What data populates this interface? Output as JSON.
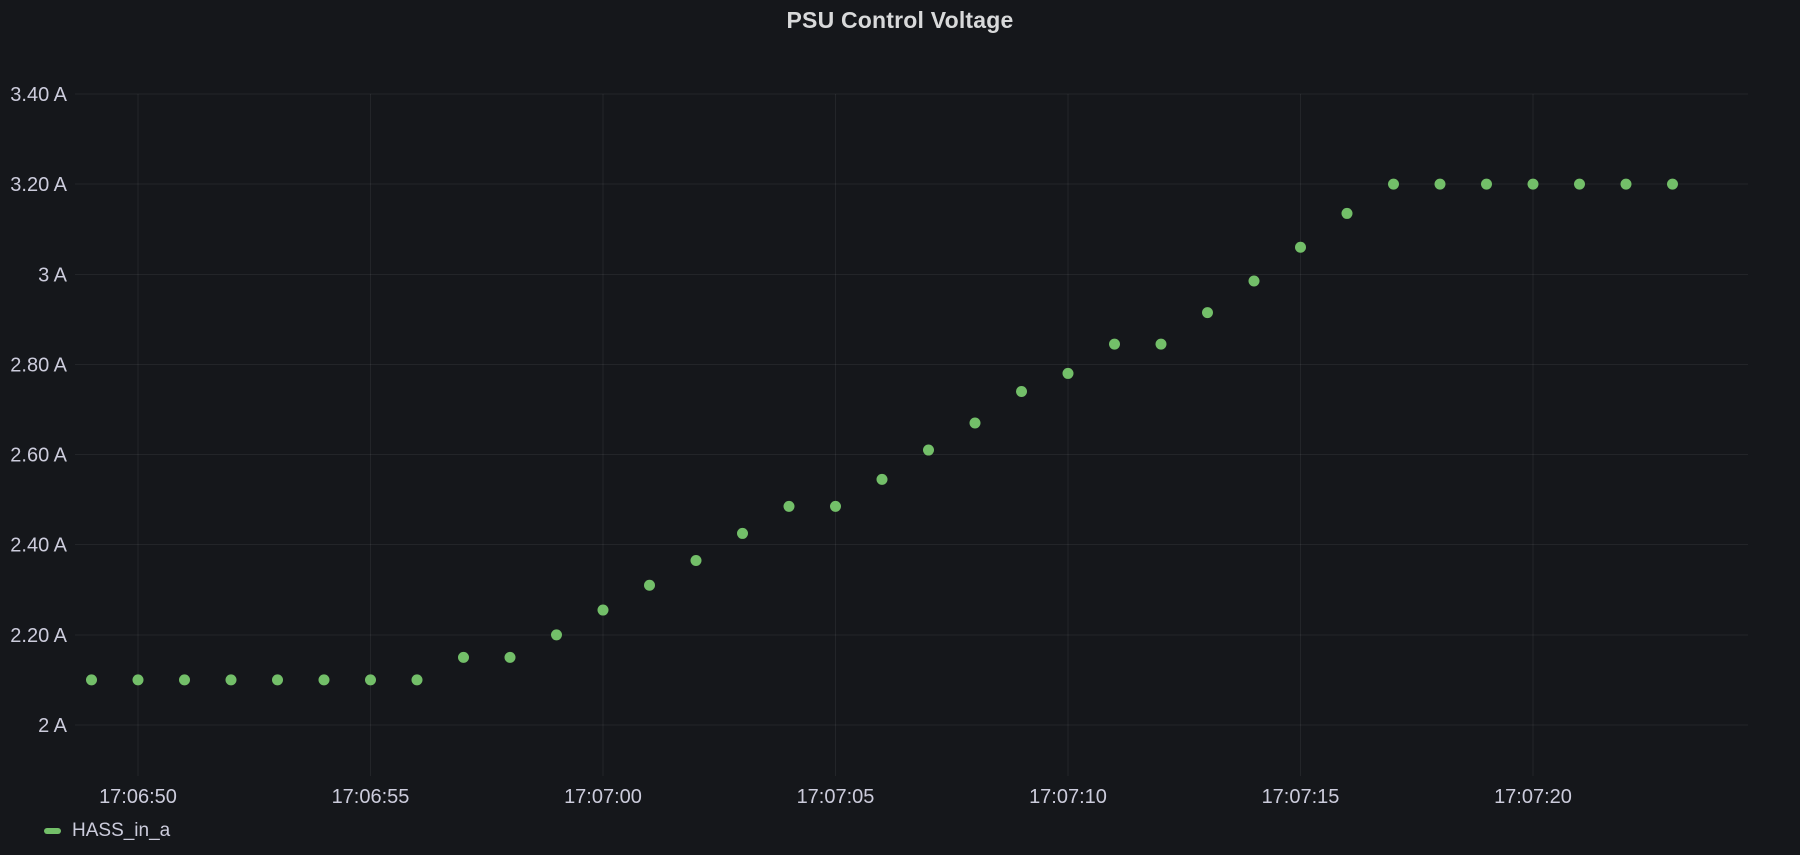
{
  "panel": {
    "title": "PSU Control Voltage"
  },
  "legend": {
    "series_label": "HASS_in_a"
  },
  "colors": {
    "background": "#15171B",
    "grid_line": "rgba(204,204,220,0.08)",
    "tick_text": "#CCCCDC",
    "title_text": "#D8D9DA",
    "point": "#73BF69"
  },
  "chart_data": {
    "type": "scatter",
    "title": "PSU Control Voltage",
    "series": [
      {
        "name": "HASS_in_a",
        "color": "#73BF69",
        "times": [
          "17:06:49",
          "17:06:50",
          "17:06:51",
          "17:06:52",
          "17:06:53",
          "17:06:54",
          "17:06:55",
          "17:06:56",
          "17:06:57",
          "17:06:58",
          "17:06:59",
          "17:07:00",
          "17:07:01",
          "17:07:02",
          "17:07:03",
          "17:07:04",
          "17:07:05",
          "17:07:06",
          "17:07:07",
          "17:07:08",
          "17:07:09",
          "17:07:10",
          "17:07:11",
          "17:07:12",
          "17:07:13",
          "17:07:14",
          "17:07:15",
          "17:07:16",
          "17:07:17",
          "17:07:18",
          "17:07:19",
          "17:07:20",
          "17:07:21",
          "17:07:22",
          "17:07:23"
        ],
        "values": [
          2.1,
          2.1,
          2.1,
          2.1,
          2.1,
          2.1,
          2.1,
          2.1,
          2.15,
          2.15,
          2.2,
          2.255,
          2.31,
          2.365,
          2.425,
          2.485,
          2.485,
          2.545,
          2.61,
          2.67,
          2.74,
          2.78,
          2.845,
          2.845,
          2.915,
          2.985,
          3.06,
          3.135,
          3.2,
          3.2,
          3.2,
          3.2,
          3.2,
          3.2,
          3.2
        ]
      }
    ],
    "x_ticks": [
      "17:06:50",
      "17:06:55",
      "17:07:00",
      "17:07:05",
      "17:07:10",
      "17:07:15",
      "17:07:20"
    ],
    "y_ticks": [
      {
        "value": 3.4,
        "label": "3.40 A"
      },
      {
        "value": 3.2,
        "label": "3.20 A"
      },
      {
        "value": 3.0,
        "label": "3 A"
      },
      {
        "value": 2.8,
        "label": "2.80 A"
      },
      {
        "value": 2.6,
        "label": "2.60 A"
      },
      {
        "value": 2.4,
        "label": "2.40 A"
      },
      {
        "value": 2.2,
        "label": "2.20 A"
      },
      {
        "value": 2.0,
        "label": "2 A"
      }
    ],
    "y_unit": "A",
    "xlabel": "",
    "ylabel": "",
    "x_range": [
      "17:06:48.6",
      "17:07:24.6"
    ],
    "y_range": [
      1.89,
      3.4
    ],
    "grid": true,
    "point_shape": "circle",
    "legend_position": "bottom-left"
  }
}
